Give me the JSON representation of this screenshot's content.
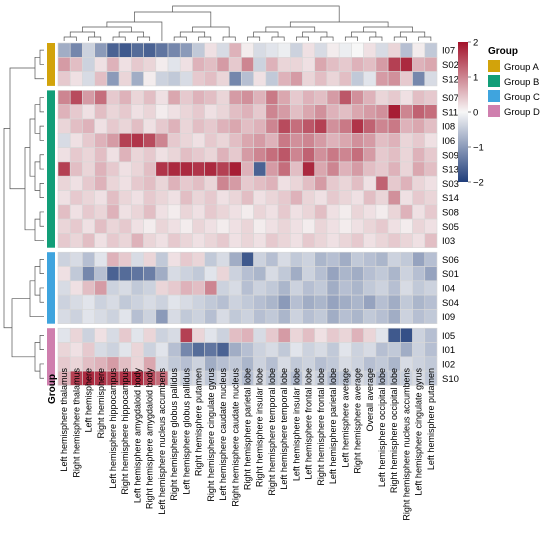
{
  "chart_data": {
    "type": "heatmap",
    "title": "",
    "annotation_label": "Group",
    "legend_title": "Group",
    "legend_placement": "right",
    "groups": [
      {
        "name": "Group A",
        "color": "#D2A30B",
        "rows": [
          "I07",
          "S02",
          "S12"
        ]
      },
      {
        "name": "Group B",
        "color": "#129E78",
        "rows": [
          "S07",
          "S11",
          "I08",
          "I06",
          "S09",
          "S13",
          "S03",
          "S14",
          "S08",
          "S05",
          "I03"
        ]
      },
      {
        "name": "Group C",
        "color": "#3FA4DE",
        "rows": [
          "S06",
          "S01",
          "I04",
          "S04",
          "I09"
        ]
      },
      {
        "name": "Group D",
        "color": "#CF7FAE",
        "rows": [
          "I05",
          "I01",
          "I02",
          "S10"
        ]
      }
    ],
    "rows": [
      "I07",
      "S02",
      "S12",
      "S07",
      "S11",
      "I08",
      "I06",
      "S09",
      "S13",
      "S03",
      "S14",
      "S08",
      "S05",
      "I03",
      "S06",
      "S01",
      "I04",
      "S04",
      "I09",
      "I05",
      "I01",
      "I02",
      "S10"
    ],
    "columns": [
      "Left hemisphere thalamus",
      "Right hemisphere thalamus",
      "Left hemisphere",
      "Right hemisphere",
      "Left hemisphere hippocampus",
      "Right hemisphere hippocampus",
      "Left hemisphere amygdaloid body",
      "Right hemisphere amygdaloid body",
      "Left hemisphere nucleus accumbens",
      "Right hemisphere globus pallidus",
      "Left hemisphere globus pallidus",
      "Right hemisphere putamen",
      "Right hemisphere cingulate gyrus",
      "Left hemisphere caudate nucleus",
      "Right hemisphere caudate nucleus",
      "Right hemisphere parietal lobe",
      "Right hemisphere insular lobe",
      "Right hemisphere temporal lobe",
      "Left hemisphere temporal lobe",
      "Left hemisphere insular lobe",
      "Left hemisphere frontal lobe",
      "Right hemisphere frontal lobe",
      "Left hemisphere parietal lobe",
      "Left hemisphere average",
      "Right hemisphere average",
      "Overall average",
      "Left hemisphere occipital lobe",
      "Right hemisphere occipital lobe",
      "Right hemisphere nucleus accumbens",
      "Left hemisphere cingulate gyrus",
      "Left hemisphere putamen"
    ],
    "color_scale": {
      "min": -2,
      "max": 2,
      "low": "#1F3D7A",
      "mid": "#F7F7F7",
      "high": "#A3122A",
      "ticks": [
        2,
        1,
        0,
        -1,
        -2
      ]
    },
    "values": [
      [
        -0.8,
        -1.2,
        -0.4,
        -1.0,
        -1.6,
        -1.7,
        -1.5,
        -1.6,
        -1.4,
        -1.2,
        -1.0,
        -0.5,
        0.2,
        -0.3,
        0.6,
        0.1,
        -0.3,
        -0.2,
        -0.1,
        -0.4,
        0.2,
        -0.3,
        0.1,
        -0.1,
        0.0,
        0.2,
        -0.3,
        0.3,
        -0.6,
        0.1,
        -0.5
      ],
      [
        0.8,
        0.5,
        -0.4,
        0.2,
        0.6,
        0.2,
        0.4,
        0.3,
        0.1,
        -0.2,
        0.2,
        0.6,
        0.5,
        0.8,
        0.4,
        1.0,
        -0.4,
        0.6,
        0.3,
        0.3,
        0.2,
        0.7,
        0.5,
        0.4,
        0.6,
        0.5,
        0.8,
        1.6,
        1.8,
        0.6,
        0.7
      ],
      [
        0.4,
        0.2,
        -0.3,
        0.5,
        -1.0,
        0.3,
        -0.8,
        0.1,
        -0.4,
        -0.5,
        -0.3,
        0.4,
        0.5,
        0.3,
        -1.2,
        -0.6,
        0.2,
        -0.5,
        0.6,
        0.8,
        0.3,
        0.5,
        0.3,
        0.5,
        -0.5,
        -0.2,
        0.8,
        0.9,
        0.4,
        -1.2,
        -0.3
      ],
      [
        1.0,
        1.5,
        0.8,
        1.2,
        0.4,
        0.6,
        0.3,
        0.5,
        0.2,
        0.7,
        0.4,
        0.6,
        0.5,
        0.3,
        0.8,
        0.9,
        0.6,
        1.1,
        0.7,
        0.4,
        0.6,
        0.5,
        0.8,
        1.4,
        0.9,
        0.6,
        0.3,
        0.4,
        0.2,
        0.5,
        0.4
      ],
      [
        0.6,
        0.4,
        0.2,
        0.5,
        0.3,
        0.4,
        0.2,
        0.3,
        0.1,
        0.2,
        0.3,
        0.4,
        0.2,
        0.3,
        0.5,
        0.6,
        0.4,
        1.0,
        0.8,
        0.5,
        0.7,
        0.9,
        0.6,
        0.5,
        0.7,
        0.8,
        0.9,
        1.9,
        1.0,
        1.3,
        1.2
      ],
      [
        0.3,
        0.5,
        0.6,
        0.2,
        0.4,
        0.3,
        0.5,
        0.2,
        0.4,
        0.6,
        0.3,
        0.5,
        0.4,
        0.6,
        0.7,
        0.5,
        0.6,
        1.0,
        1.5,
        1.2,
        1.4,
        1.6,
        0.9,
        1.1,
        1.7,
        1.3,
        1.0,
        1.1,
        0.6,
        0.7,
        0.5
      ],
      [
        -0.3,
        0.2,
        0.4,
        0.6,
        0.8,
        1.6,
        1.7,
        1.5,
        1.0,
        0.4,
        0.3,
        0.2,
        0.4,
        0.3,
        0.5,
        0.7,
        0.8,
        0.6,
        1.1,
        0.9,
        1.0,
        0.8,
        0.6,
        0.7,
        0.9,
        0.8,
        0.5,
        0.6,
        0.3,
        0.4,
        0.2
      ],
      [
        0.2,
        0.4,
        0.3,
        0.5,
        0.2,
        0.6,
        0.3,
        0.4,
        0.2,
        0.3,
        0.5,
        0.4,
        0.3,
        0.6,
        0.4,
        0.8,
        1.0,
        1.2,
        1.4,
        1.0,
        1.3,
        0.9,
        1.1,
        1.0,
        1.2,
        0.8,
        0.4,
        0.5,
        0.3,
        0.6,
        0.4
      ],
      [
        1.6,
        0.5,
        0.3,
        0.6,
        0.4,
        0.2,
        0.3,
        0.5,
        1.7,
        1.8,
        1.8,
        1.7,
        1.8,
        1.6,
        1.9,
        0.6,
        -1.6,
        0.8,
        1.2,
        0.5,
        1.8,
        0.7,
        1.0,
        0.6,
        0.8,
        0.5,
        0.4,
        0.6,
        0.3,
        0.7,
        0.5
      ],
      [
        0.3,
        0.2,
        0.4,
        0.6,
        0.3,
        0.2,
        0.4,
        0.5,
        0.3,
        0.6,
        0.4,
        0.5,
        0.3,
        1.0,
        0.8,
        0.4,
        0.5,
        0.6,
        0.2,
        0.3,
        0.5,
        0.8,
        0.4,
        0.3,
        0.5,
        0.2,
        1.3,
        0.4,
        0.6,
        0.3,
        0.2
      ],
      [
        0.2,
        0.4,
        0.3,
        0.2,
        0.5,
        0.3,
        0.2,
        0.4,
        0.3,
        0.2,
        0.5,
        0.3,
        0.4,
        0.2,
        0.3,
        0.5,
        0.2,
        0.3,
        0.4,
        0.6,
        0.3,
        0.2,
        0.4,
        0.3,
        0.2,
        0.5,
        0.3,
        0.9,
        0.2,
        0.4,
        0.3
      ],
      [
        0.5,
        0.2,
        0.4,
        0.3,
        0.6,
        0.2,
        0.3,
        0.5,
        0.2,
        0.1,
        0.3,
        0.2,
        0.4,
        0.3,
        0.2,
        0.1,
        0.3,
        0.2,
        0.4,
        0.2,
        0.3,
        0.5,
        0.2,
        0.1,
        0.3,
        0.2,
        0.1,
        0.3,
        0.6,
        0.2,
        0.4
      ],
      [
        0.3,
        0.4,
        0.2,
        0.5,
        0.3,
        0.4,
        0.2,
        0.1,
        0.3,
        0.2,
        0.1,
        0.3,
        0.2,
        0.1,
        0.2,
        0.3,
        0.1,
        0.2,
        0.3,
        0.2,
        0.1,
        0.3,
        0.2,
        0.1,
        0.2,
        0.3,
        0.4,
        0.2,
        0.1,
        0.3,
        0.2
      ],
      [
        0.4,
        0.3,
        0.5,
        0.2,
        0.4,
        0.3,
        0.6,
        0.3,
        0.2,
        0.4,
        0.3,
        0.2,
        0.3,
        0.4,
        0.2,
        0.3,
        0.2,
        0.4,
        0.3,
        0.2,
        0.4,
        0.3,
        0.2,
        0.3,
        0.4,
        0.2,
        0.3,
        0.4,
        0.3,
        0.2,
        0.5
      ],
      [
        -0.4,
        -0.3,
        -0.6,
        -0.2,
        0.6,
        0.4,
        -0.3,
        0.3,
        -0.5,
        0.2,
        0.4,
        0.3,
        -0.5,
        -0.3,
        -0.8,
        -1.7,
        -0.4,
        -0.6,
        -0.3,
        -0.5,
        -0.4,
        -0.7,
        -0.6,
        -0.8,
        -0.5,
        -0.6,
        -0.7,
        -0.4,
        -0.5,
        -0.9,
        -0.6
      ],
      [
        0.2,
        -0.5,
        -1.2,
        -0.6,
        -1.6,
        -1.5,
        -1.4,
        -1.3,
        -0.8,
        -0.3,
        -0.4,
        -0.5,
        -0.2,
        0.3,
        -0.4,
        -0.6,
        -0.7,
        -0.3,
        -0.5,
        -0.8,
        -0.4,
        -0.6,
        -0.9,
        -0.7,
        -0.8,
        -0.6,
        -0.5,
        -0.7,
        -0.4,
        -0.6,
        -0.9
      ],
      [
        -0.3,
        0.2,
        0.5,
        0.8,
        -0.4,
        -0.3,
        -0.5,
        -0.4,
        0.3,
        0.4,
        0.6,
        0.5,
        1.0,
        -0.4,
        -0.3,
        -0.6,
        -0.4,
        -0.5,
        -0.7,
        -0.4,
        -0.6,
        -0.5,
        -0.8,
        -0.6,
        -0.7,
        -0.5,
        -0.4,
        -0.6,
        -0.3,
        -0.5,
        -0.4
      ],
      [
        -0.4,
        -0.3,
        -0.2,
        -0.4,
        -0.3,
        -0.5,
        -0.4,
        -0.3,
        -0.4,
        -0.2,
        -0.3,
        -0.4,
        -0.5,
        -0.6,
        -0.4,
        -0.5,
        -0.6,
        -0.7,
        -1.0,
        -0.6,
        -0.8,
        -0.7,
        -0.9,
        -0.8,
        -0.7,
        -0.9,
        -0.6,
        -0.8,
        -0.5,
        -0.7,
        -0.6
      ],
      [
        -0.3,
        -0.4,
        -0.2,
        -0.3,
        -0.4,
        -0.2,
        -0.6,
        -0.4,
        -1.0,
        -0.3,
        -0.5,
        -0.4,
        -0.6,
        -0.3,
        -0.5,
        -0.4,
        -0.6,
        -0.5,
        -0.7,
        -0.4,
        -0.6,
        -0.5,
        -0.8,
        -0.6,
        -0.7,
        -0.5,
        -0.6,
        -0.8,
        -0.4,
        -0.6,
        -0.5
      ],
      [
        -0.2,
        0.3,
        -0.4,
        0.2,
        -0.3,
        0.4,
        -0.2,
        0.3,
        -0.4,
        -0.3,
        1.6,
        0.3,
        -0.2,
        -0.4,
        0.5,
        0.6,
        -0.3,
        0.4,
        0.8,
        0.3,
        0.5,
        0.2,
        0.4,
        0.3,
        0.6,
        0.3,
        -0.2,
        -1.7,
        -1.8,
        -0.4,
        -0.6
      ],
      [
        0.3,
        0.2,
        0.4,
        -0.3,
        -0.4,
        -0.2,
        0.3,
        -0.4,
        -0.2,
        -0.6,
        -1.2,
        -1.5,
        -1.4,
        -1.6,
        -0.8,
        -0.6,
        -0.4,
        -0.3,
        -0.5,
        -0.2,
        -0.4,
        -0.3,
        -0.5,
        -0.2,
        -0.4,
        -0.3,
        -0.6,
        -0.5,
        -0.8,
        -0.4,
        -0.6
      ],
      [
        0.4,
        0.3,
        0.5,
        0.6,
        0.8,
        0.5,
        0.3,
        0.7,
        -0.3,
        -0.5,
        -0.6,
        -0.4,
        -0.8,
        -0.6,
        -0.5,
        -0.7,
        -0.4,
        -0.6,
        -0.3,
        -0.5,
        -0.4,
        -0.6,
        -0.5,
        -0.3,
        -0.4,
        -0.6,
        -0.5,
        -0.7,
        -0.3,
        -0.4,
        -0.5
      ],
      [
        0.6,
        1.6,
        1.8,
        1.7,
        1.6,
        1.7,
        1.8,
        1.5,
        1.2,
        -0.2,
        -0.4,
        -0.3,
        -0.5,
        -0.3,
        -0.4,
        -0.6,
        -0.3,
        -0.5,
        -0.4,
        -0.6,
        -0.3,
        -0.4,
        -0.6,
        -0.5,
        -0.3,
        -0.4,
        -0.6,
        -0.5,
        -0.4,
        -0.3,
        -0.5
      ]
    ]
  }
}
